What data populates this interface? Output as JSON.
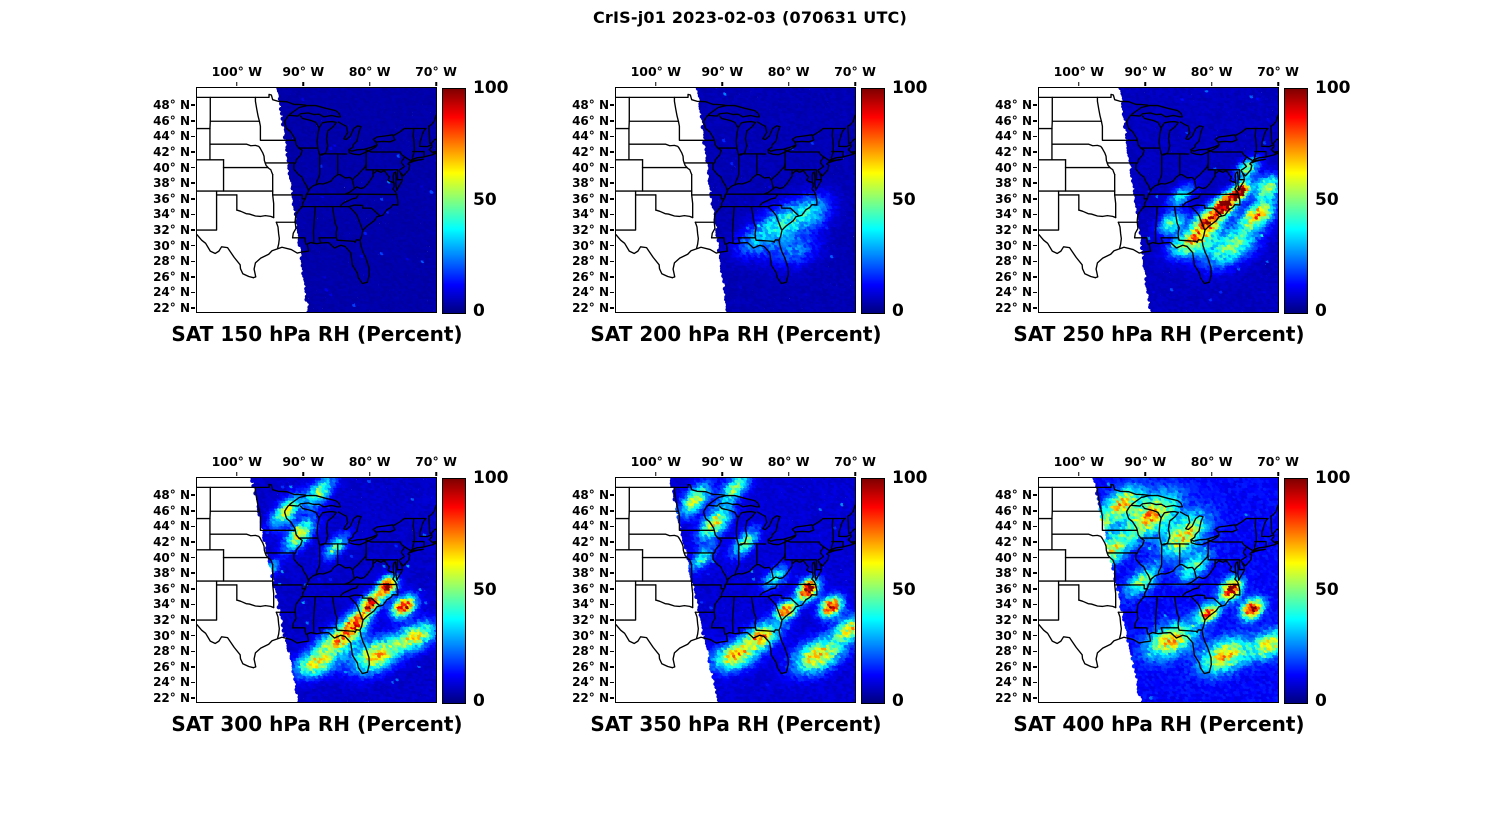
{
  "figure": {
    "title": "CrIS-j01 2023-02-03 (070631 UTC)",
    "instrument": "CrIS-j01",
    "date": "2023-02-03",
    "time_utc": "070631"
  },
  "colors": {
    "background": "#ffffff",
    "map_outline": "#000000",
    "text": "#000000",
    "jet_stops": [
      {
        "t": 0.0,
        "hex": "#000080"
      },
      {
        "t": 0.125,
        "hex": "#0000ff"
      },
      {
        "t": 0.375,
        "hex": "#00ffff"
      },
      {
        "t": 0.625,
        "hex": "#ffff00"
      },
      {
        "t": 0.875,
        "hex": "#ff0000"
      },
      {
        "t": 1.0,
        "hex": "#800000"
      }
    ]
  },
  "axes": {
    "lon_tick_labels": [
      "100° W",
      "90° W",
      "80° W",
      "70° W"
    ],
    "lon_tick_values": [
      -100,
      -90,
      -80,
      -70
    ],
    "lat_tick_labels": [
      "48° N",
      "46° N",
      "44° N",
      "42° N",
      "40° N",
      "38° N",
      "36° N",
      "34° N",
      "32° N",
      "30° N",
      "28° N",
      "26° N",
      "24° N",
      "22° N"
    ],
    "lat_tick_values": [
      48,
      46,
      44,
      42,
      40,
      38,
      36,
      34,
      32,
      30,
      28,
      26,
      24,
      22
    ],
    "lon_range_deg": [
      -106,
      -70
    ],
    "lat_range_deg": [
      21.5,
      50.2
    ],
    "grid": false
  },
  "colorbar": {
    "tick_labels": [
      "100",
      "50",
      "0"
    ],
    "tick_values": [
      100,
      50,
      0
    ],
    "min": 0,
    "max": 100,
    "orientation": "vertical",
    "colormap": "jet"
  },
  "feature_columns": [
    "lon",
    "lat",
    "rx_deg",
    "ry_deg",
    "rot_deg",
    "peak_rh_percent"
  ],
  "chart_data": [
    {
      "type": "scatter",
      "title": "SAT 150 hPa RH (Percent)",
      "level_hPa": 150,
      "variable": "Relative Humidity (Percent)",
      "value_range": [
        0,
        100
      ],
      "swath": {
        "top_lon": -93.8,
        "bottom_lon": -89.2
      },
      "base_rh": 4,
      "features": []
    },
    {
      "type": "scatter",
      "title": "SAT 200 hPa RH (Percent)",
      "level_hPa": 200,
      "variable": "Relative Humidity (Percent)",
      "value_range": [
        0,
        100
      ],
      "swath": {
        "top_lon": -93.8,
        "bottom_lon": -89.2
      },
      "base_rh": 5,
      "features": [
        [
          -81,
          33,
          3.5,
          2,
          20,
          30
        ],
        [
          -76.5,
          34.5,
          3,
          2,
          20,
          26
        ],
        [
          -85,
          30.5,
          3,
          1.8,
          15,
          20
        ],
        [
          -79,
          29.5,
          3.5,
          2,
          15,
          18
        ]
      ]
    },
    {
      "type": "scatter",
      "title": "SAT 250 hPa RH (Percent)",
      "level_hPa": 250,
      "variable": "Relative Humidity (Percent)",
      "value_range": [
        0,
        100
      ],
      "swath": {
        "top_lon": -93.8,
        "bottom_lon": -89.2
      },
      "base_rh": 6,
      "features": [
        [
          -78,
          35.3,
          1.8,
          1.1,
          35,
          97
        ],
        [
          -75.6,
          37,
          1.5,
          0.9,
          35,
          92
        ],
        [
          -80.5,
          33.2,
          2.4,
          1.4,
          30,
          72
        ],
        [
          -73,
          34,
          2.5,
          1.4,
          25,
          62
        ],
        [
          -83,
          30.5,
          3,
          1.5,
          20,
          55
        ],
        [
          -77,
          30,
          4,
          2,
          25,
          42
        ],
        [
          -71.5,
          37.5,
          2,
          1.4,
          25,
          48
        ],
        [
          -74.5,
          40,
          1.8,
          1,
          30,
          45
        ],
        [
          -86,
          33,
          2,
          1.2,
          25,
          38
        ],
        [
          -84.5,
          36.5,
          2,
          1,
          30,
          30
        ]
      ]
    },
    {
      "type": "scatter",
      "title": "SAT 300 hPa RH (Percent)",
      "level_hPa": 300,
      "variable": "Relative Humidity (Percent)",
      "value_range": [
        0,
        100
      ],
      "swath": {
        "top_lon": -97.8,
        "bottom_lon": -90.6
      },
      "base_rh": 7,
      "features": [
        [
          -77.3,
          36.4,
          1.5,
          1,
          35,
          97
        ],
        [
          -79.8,
          34.2,
          1.5,
          1,
          30,
          88
        ],
        [
          -74.8,
          33.8,
          1.8,
          1.1,
          25,
          82
        ],
        [
          -82,
          31.8,
          2,
          1.2,
          25,
          68
        ],
        [
          -84.5,
          29.5,
          3,
          1.5,
          20,
          58
        ],
        [
          -79,
          27.5,
          3.5,
          1.8,
          20,
          58
        ],
        [
          -73,
          30,
          3,
          1.5,
          20,
          52
        ],
        [
          -88,
          26.5,
          3,
          1.5,
          15,
          52
        ],
        [
          -90.5,
          43,
          2.5,
          1.2,
          40,
          52
        ],
        [
          -92.5,
          46,
          2.5,
          1.2,
          40,
          48
        ],
        [
          -87.5,
          48.5,
          2.5,
          1.2,
          40,
          42
        ],
        [
          -85,
          41.5,
          2,
          1,
          40,
          34
        ],
        [
          -95,
          38.5,
          1.5,
          0.8,
          40,
          30
        ]
      ]
    },
    {
      "type": "scatter",
      "title": "SAT 350 hPa RH (Percent)",
      "level_hPa": 350,
      "variable": "Relative Humidity (Percent)",
      "value_range": [
        0,
        100
      ],
      "swath": {
        "top_lon": -97.8,
        "bottom_lon": -90.6
      },
      "base_rh": 8,
      "features": [
        [
          -77,
          36,
          1.6,
          1.1,
          35,
          97
        ],
        [
          -73.5,
          33.8,
          1.6,
          1.1,
          25,
          88
        ],
        [
          -80.3,
          33.3,
          1.6,
          1,
          25,
          76
        ],
        [
          -84,
          30,
          2.5,
          1.4,
          20,
          62
        ],
        [
          -88,
          27.5,
          3,
          1.6,
          15,
          58
        ],
        [
          -75.5,
          27.5,
          3.5,
          1.8,
          20,
          58
        ],
        [
          -70.5,
          31,
          2.5,
          1.4,
          20,
          52
        ],
        [
          -91,
          44.5,
          2.6,
          1.3,
          40,
          52
        ],
        [
          -94,
          47.5,
          2.5,
          1.3,
          40,
          48
        ],
        [
          -88,
          49,
          2.5,
          1.2,
          40,
          42
        ],
        [
          -86.5,
          42,
          2.2,
          1.1,
          40,
          38
        ],
        [
          -93,
          40,
          2,
          1,
          40,
          32
        ],
        [
          -82,
          37.5,
          2,
          1,
          35,
          30
        ]
      ]
    },
    {
      "type": "scatter",
      "title": "SAT 400 hPa RH (Percent)",
      "level_hPa": 400,
      "variable": "Relative Humidity (Percent)",
      "value_range": [
        0,
        100
      ],
      "swath": {
        "top_lon": -97.8,
        "bottom_lon": -90.6
      },
      "base_rh": 12,
      "features": [
        [
          -77,
          36,
          1.6,
          1.1,
          35,
          92
        ],
        [
          -73.8,
          33.5,
          1.6,
          1.1,
          25,
          82
        ],
        [
          -80.5,
          33,
          1.6,
          1,
          25,
          66
        ],
        [
          -89,
          45.5,
          4,
          2,
          30,
          56
        ],
        [
          -84,
          43,
          3.5,
          1.8,
          35,
          52
        ],
        [
          -93.5,
          47,
          3,
          1.5,
          30,
          52
        ],
        [
          -95,
          41,
          3,
          1.5,
          35,
          46
        ],
        [
          -86,
          29.5,
          3.5,
          1.8,
          20,
          52
        ],
        [
          -78,
          27.5,
          3.5,
          1.8,
          20,
          52
        ],
        [
          -71,
          29,
          3,
          1.5,
          20,
          48
        ],
        [
          -90.5,
          37,
          2.5,
          1.2,
          35,
          38
        ],
        [
          -82.5,
          39,
          2.5,
          1.2,
          35,
          34
        ],
        [
          -97,
          44,
          2,
          1,
          35,
          40
        ]
      ]
    }
  ]
}
